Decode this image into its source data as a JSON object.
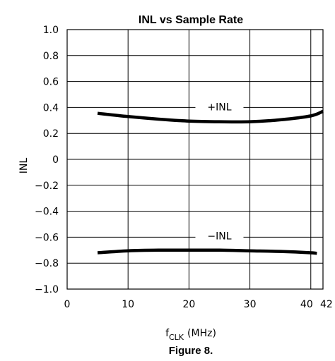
{
  "chart_data": {
    "type": "line",
    "title": "INL vs Sample Rate",
    "xlabel": "f",
    "xlabel_sub": "CLK",
    "xlabel_units": "(MHz)",
    "ylabel": "INL",
    "xlim": [
      0,
      42
    ],
    "ylim": [
      -1.0,
      1.0
    ],
    "xticks": [
      0,
      10,
      20,
      30,
      40,
      42
    ],
    "xtick_labels": [
      "0",
      "10",
      "20",
      "30",
      "40",
      "42"
    ],
    "yticks": [
      1.0,
      0.8,
      0.6,
      0.4,
      0.2,
      0,
      -0.2,
      -0.4,
      -0.6,
      -0.8,
      -1.0
    ],
    "ytick_labels": [
      "1.0",
      "0.8",
      "0.6",
      "0.4",
      "0.2",
      "0",
      "-0.2",
      "-0.4",
      "-0.6",
      "-0.8",
      "-1.0"
    ],
    "grid": true,
    "series": [
      {
        "name": "+INL",
        "x": [
          5,
          10,
          15,
          20,
          25,
          30,
          35,
          40,
          42
        ],
        "y": [
          0.355,
          0.33,
          0.31,
          0.295,
          0.29,
          0.29,
          0.305,
          0.335,
          0.37
        ]
      },
      {
        "name": "-INL",
        "x": [
          5,
          10,
          15,
          20,
          25,
          30,
          35,
          40,
          41
        ],
        "y": [
          -0.72,
          -0.705,
          -0.7,
          -0.7,
          -0.7,
          -0.705,
          -0.71,
          -0.72,
          -0.725
        ]
      }
    ],
    "caption": "Figure 8."
  }
}
